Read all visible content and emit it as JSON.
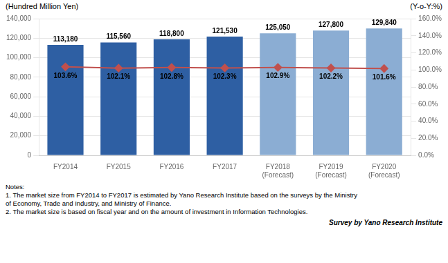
{
  "chart_data": {
    "type": "bar",
    "categories": [
      "FY2014",
      "FY2015",
      "FY2016",
      "FY2017",
      "FY2018\n(Forecast)",
      "FY2019\n(Forecast)",
      "FY2020\n(Forecast)"
    ],
    "series": [
      {
        "type": "bar",
        "colors": [
          "#2E5FA3",
          "#2E5FA3",
          "#2E5FA3",
          "#2E5FA3",
          "#8BADD3",
          "#8BADD3",
          "#8BADD3"
        ],
        "values": [
          113180,
          115560,
          118800,
          121530,
          125050,
          127800,
          129840
        ],
        "value_labels": [
          "113,180",
          "115,560",
          "118,800",
          "121,530",
          "125,050",
          "127,800",
          "129,840"
        ]
      },
      {
        "type": "line",
        "axis": "y2",
        "color": "#C0504D",
        "marker": "diamond",
        "values": [
          103.6,
          102.1,
          102.8,
          102.3,
          102.9,
          102.2,
          101.6
        ],
        "value_labels": [
          "103.6%",
          "102.1%",
          "102.8%",
          "102.3%",
          "102.9%",
          "102.2%",
          "101.6%"
        ]
      }
    ],
    "ylabel": "(Hundred Million Yen)",
    "y2label": "(Y-o-Y:%)",
    "ylim": [
      0,
      140000
    ],
    "yticks": [
      0,
      {
        "value": 20000,
        "label": "20,000"
      },
      {
        "value": 40000,
        "label": "40,000"
      },
      {
        "value": 60000,
        "label": "60,000"
      },
      {
        "value": 80000,
        "label": "80,000"
      },
      {
        "value": 100000,
        "label": "100,000"
      },
      {
        "value": 120000,
        "label": "120,000"
      },
      {
        "value": 140000,
        "label": "140,000"
      }
    ],
    "y2lim": [
      0.0,
      160.0
    ],
    "y2ticks": [
      {
        "value": 0,
        "label": "0.0%"
      },
      {
        "value": 20,
        "label": "20.0%"
      },
      {
        "value": 40,
        "label": "40.0%"
      },
      {
        "value": 60,
        "label": "60.0%"
      },
      {
        "value": 80,
        "label": "80.0%"
      },
      {
        "value": 100,
        "label": "100.0%"
      },
      {
        "value": 120,
        "label": "120.0%"
      },
      {
        "value": 140,
        "label": "140.0%"
      },
      {
        "value": 160,
        "label": "160.0%"
      }
    ],
    "grid": true,
    "data_labels": true,
    "notes": [
      "Notes:",
      "1. The market size from FY2014 to FY2017 is estimated by Yano Research Institute based on the surveys by the Ministry\nof Economy, Trade and Industry, and Ministry of Finance.",
      "2. The market size is based on fiscal year and on the amount of investment in Information Technologies."
    ],
    "source": "Survey by Yano Research Institute"
  }
}
